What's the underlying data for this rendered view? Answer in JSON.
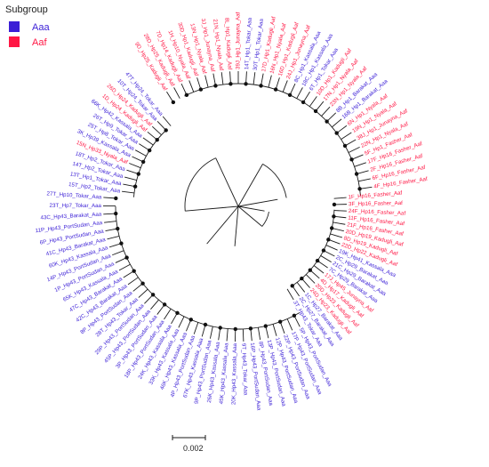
{
  "legend": {
    "title": "Subgroup",
    "items": [
      {
        "label": "Aaa",
        "color": "#3b1fd6"
      },
      {
        "label": "Aaf",
        "color": "#ff1744"
      }
    ]
  },
  "scale_bar": {
    "label": "0.002"
  },
  "colors": {
    "Aaa": "#3b1fd6",
    "Aaf": "#ff1744",
    "branch": "#1a1a1a",
    "node": "#111111"
  },
  "leaves": [
    {
      "label": "9D_Hp25_Kadugli_Aaf",
      "group": "Aaf"
    },
    {
      "label": "28D_Hp25_Kadugli_Aaf",
      "group": "Aaf"
    },
    {
      "label": "7D_Hp14_Kadugli_Aaf",
      "group": "Aaf"
    },
    {
      "label": "1H_Hp10_Nyala_Aaf",
      "group": "Aaf"
    },
    {
      "label": "30D_Hp1_Kadugli_Aaf",
      "group": "Aaf"
    },
    {
      "label": "13N_Hp1_Nyala_Aaf",
      "group": "Aaf"
    },
    {
      "label": "3J_Hp1_Junayna_Aaf",
      "group": "Aaf"
    },
    {
      "label": "21N_Hp1_Nyala_Aaf",
      "group": "Aaf"
    },
    {
      "label": "8L_Hp1_Kadugli_Aaf",
      "group": "Aaf"
    },
    {
      "label": "39J_Hp1_Junayna_Aaf",
      "group": "Aaf"
    },
    {
      "label": "14T_Hp1_Tokar_Aaa",
      "group": "Aaa"
    },
    {
      "label": "30T_Hp1_Tokar_Aaa",
      "group": "Aaa"
    },
    {
      "label": "17D_Hp1_Kadugli_Aaf",
      "group": "Aaf"
    },
    {
      "label": "16N_Hp1_Nyala_Aaf",
      "group": "Aaf"
    },
    {
      "label": "16D_Hp1_Kadugli_Aaf",
      "group": "Aaf"
    },
    {
      "label": "24J_Hp1_Junayna_Aaf",
      "group": "Aaf"
    },
    {
      "label": "8C_Hp1_Kassala_Aaa",
      "group": "Aaa"
    },
    {
      "label": "18C_Hp1_Kassala_Aaa",
      "group": "Aaa"
    },
    {
      "label": "6T_Hp1_Tokar_Aaa",
      "group": "Aaa"
    },
    {
      "label": "10D_Hp1_Kadugli_Aaf",
      "group": "Aaf"
    },
    {
      "label": "17N_Hp1_Nyala_Aaf",
      "group": "Aaf"
    },
    {
      "label": "23N_Hp1_Nyala_Aaf",
      "group": "Aaf"
    },
    {
      "label": "8B_Hp1_Barakat_Aaa",
      "group": "Aaa"
    },
    {
      "label": "16B_Hp1_Barakat_Aaa",
      "group": "Aaa"
    },
    {
      "label": "6N_Hp1_Nyala_Aaf",
      "group": "Aaf"
    },
    {
      "label": "19N_Hp1_Nyala_Aaf",
      "group": "Aaf"
    },
    {
      "label": "38J_Hp1_Junayna_Aaf",
      "group": "Aaf"
    },
    {
      "label": "22N_Hp1_Nyala_Aaf",
      "group": "Aaf"
    },
    {
      "label": "5F_Hp1_Fasher_Aaf",
      "group": "Aaf"
    },
    {
      "label": "17F_Hp16_Fasher_Aaf",
      "group": "Aaf"
    },
    {
      "label": "2F_Hp16_Fasher_Aaf",
      "group": "Aaf"
    },
    {
      "label": "6F_Hp16_Fasher_Aaf",
      "group": "Aaf"
    },
    {
      "label": "4F_Hp16_Fasher_Aaf",
      "group": "Aaf"
    },
    {
      "label": "1F_Hp16_Fasher_Aaf",
      "group": "Aaf"
    },
    {
      "label": "3F_Hp16_Fasher_Aaf",
      "group": "Aaf"
    },
    {
      "label": "24F_Hp16_Fasher_Aaf",
      "group": "Aaf"
    },
    {
      "label": "11F_Hp16_Fasher_Aaf",
      "group": "Aaf"
    },
    {
      "label": "21F_Hp16_Fasher_Aaf",
      "group": "Aaf"
    },
    {
      "label": "20D_Hp19_Kadugli_Aaf",
      "group": "Aaf"
    },
    {
      "label": "8D_Hp19_Kadugli_Aaf",
      "group": "Aaf"
    },
    {
      "label": "22D_Hp22_Kadugli_Aaf",
      "group": "Aaf"
    },
    {
      "label": "19K_Hp41_Kassala_Aaa",
      "group": "Aaa"
    },
    {
      "label": "2C_Hp29_Barakat_Aaa",
      "group": "Aaa"
    },
    {
      "label": "21C_Hp29_Barakat_Aaa",
      "group": "Aaa"
    },
    {
      "label": "7C_Hp29_Barakat_Aaa",
      "group": "Aaa"
    },
    {
      "label": "17J_Hp45_Junayna_Aaf",
      "group": "Aaf"
    },
    {
      "label": "4D_Hp17_Kadugli_Aaf",
      "group": "Aaf"
    },
    {
      "label": "20D_Hp23_Kadugli_Aaf",
      "group": "Aaf"
    },
    {
      "label": "24D_Hp23_Kadugli_Aaf",
      "group": "Aaf"
    },
    {
      "label": "1C_Hp27_Barakat_Aaa",
      "group": "Aaa"
    },
    {
      "label": "2C_Hp27_Barakat_Aaa",
      "group": "Aaa"
    },
    {
      "label": "3T_Hp43_Tokar_Aaa",
      "group": "Aaa"
    },
    {
      "label": "5P_Hp43_PortSudan_Aaa",
      "group": "Aaa"
    },
    {
      "label": "17P_Hp43_PortSudan_Aaa",
      "group": "Aaa"
    },
    {
      "label": "22P_Hp43_PortSudan_Aaa",
      "group": "Aaa"
    },
    {
      "label": "12P_Hp43_PortSudan_Aaa",
      "group": "Aaa"
    },
    {
      "label": "13P_Hp43_PortSudan_Aaa",
      "group": "Aaa"
    },
    {
      "label": "8P_Hp43_PortSudan_Aaa",
      "group": "Aaa"
    },
    {
      "label": "16P_Hp43_PortSudan_Aaa",
      "group": "Aaa"
    },
    {
      "label": "9T_Hp43_Tokar_Aaa",
      "group": "Aaa"
    },
    {
      "label": "20K_Hp43_Kassala_Aaa",
      "group": "Aaa"
    },
    {
      "label": "45K_Hp43_Kassala_Aaa",
      "group": "Aaa"
    },
    {
      "label": "26K_Hp43_Kassala_Aaa",
      "group": "Aaa"
    },
    {
      "label": "9P_Hp43_PortSudan_Aaa",
      "group": "Aaa"
    },
    {
      "label": "67K_Hp43_Kassala_Aaa",
      "group": "Aaa"
    },
    {
      "label": "4P_Hp43_PortSudan_Aaa",
      "group": "Aaa"
    },
    {
      "label": "46K_Hp43_Kassala_Aaa",
      "group": "Aaa"
    },
    {
      "label": "33K_Hp43_Kassala_Aaa",
      "group": "Aaa"
    },
    {
      "label": "24K_Hp43_Kassala_Aaa",
      "group": "Aaa"
    },
    {
      "label": "18P_Hp43_PortSudan_Aaa",
      "group": "Aaa"
    },
    {
      "label": "3P_Hp43_PortSudan_Aaa",
      "group": "Aaa"
    },
    {
      "label": "45P_Hp43_PortSudan_Aaa",
      "group": "Aaa"
    },
    {
      "label": "29P_Hp43_PortSudan_Aaa",
      "group": "Aaa"
    },
    {
      "label": "28T_Hp43_Tokar_Aaa",
      "group": "Aaa"
    },
    {
      "label": "8P_Hp43_PortSudan_Aaa",
      "group": "Aaa"
    },
    {
      "label": "42C_Hp43_Barakat_Aaa",
      "group": "Aaa"
    },
    {
      "label": "47C_Hp43_Barakat_Aaa",
      "group": "Aaa"
    },
    {
      "label": "65K_Hp43_Kassala_Aaa",
      "group": "Aaa"
    },
    {
      "label": "1P_Hp43_PortSudan_Aaa",
      "group": "Aaa"
    },
    {
      "label": "14P_Hp43_PortSudan_Aaa",
      "group": "Aaa"
    },
    {
      "label": "60K_Hp43_Kassala_Aaa",
      "group": "Aaa"
    },
    {
      "label": "41C_Hp43_Barakat_Aaa",
      "group": "Aaa"
    },
    {
      "label": "6P_Hp43_PortSudan_Aaa",
      "group": "Aaa"
    },
    {
      "label": "11P_Hp43_PortSudan_Aaa",
      "group": "Aaa"
    },
    {
      "label": "43C_Hp43_Barakat_Aaa",
      "group": "Aaa"
    },
    {
      "label": "23T_Hp7_Tokar_Aaa",
      "group": "Aaa"
    },
    {
      "label": "27T_Hp10_Tokar_Aaa",
      "group": "Aaa"
    },
    {
      "label": "15T_Hp2_Tokar_Aaa",
      "group": "Aaa"
    },
    {
      "label": "13T_Hp1_Tokar_Aaa",
      "group": "Aaa"
    },
    {
      "label": "14T_Hp2_Tokar_Aaa",
      "group": "Aaa"
    },
    {
      "label": "18T_Hp2_Tokar_Aaa",
      "group": "Aaa"
    },
    {
      "label": "15N_Hp33_Nyala_Aaf",
      "group": "Aaf"
    },
    {
      "label": "3K_Hp39_Kassala_Aaa",
      "group": "Aaa"
    },
    {
      "label": "25T_Hp8_Tokar_Aaa",
      "group": "Aaa"
    },
    {
      "label": "26T_Hp9_Tokar_Aaa",
      "group": "Aaa"
    },
    {
      "label": "66K_Hp42_Kassala_Aaa",
      "group": "Aaa"
    },
    {
      "label": "1D_Hp24_Kadugli_Aaf",
      "group": "Aaf"
    },
    {
      "label": "26D_Hp24_Kadugli_Aaf",
      "group": "Aaf"
    },
    {
      "label": "10T_Hp24_Tokar_Aaa",
      "group": "Aaa"
    },
    {
      "label": "47T_Hp24_Tokar_Aaa",
      "group": "Aaa"
    }
  ]
}
